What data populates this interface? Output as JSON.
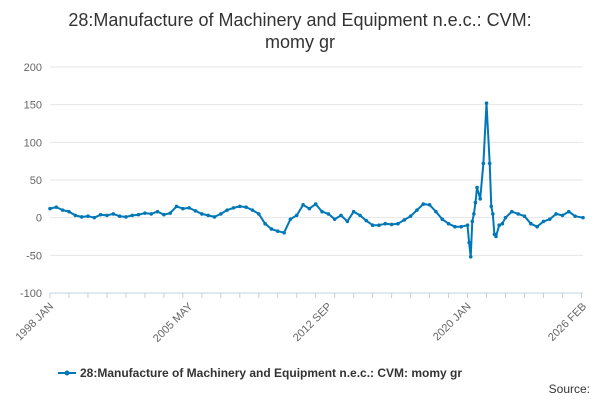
{
  "chart_data": {
    "type": "line",
    "title_lines": [
      "28:Manufacture of Machinery and Equipment n.e.c.: CVM:",
      "momy gr"
    ],
    "xlabel": "",
    "ylabel": "",
    "ylim": [
      -100,
      200
    ],
    "yticks": [
      -100,
      -50,
      0,
      50,
      100,
      150,
      200
    ],
    "xlim": [
      "1998 JAN",
      "2026 FEB"
    ],
    "xtick_labels": [
      "1998 JAN",
      "2005 MAY",
      "2012 SEP",
      "2020 JAN",
      "2026 FEB"
    ],
    "grid": "horizontal",
    "legend_position": "bottom",
    "series": [
      {
        "name": "28:Manufacture of Machinery and Equipment n.e.c.: CVM: momy gr",
        "color": "#0077b6",
        "x": [
          "1998 JAN",
          "1998 MAY",
          "1998 SEP",
          "1999 JAN",
          "1999 MAY",
          "1999 SEP",
          "2000 JAN",
          "2000 MAY",
          "2000 SEP",
          "2001 JAN",
          "2001 MAY",
          "2001 SEP",
          "2002 JAN",
          "2002 MAY",
          "2002 SEP",
          "2003 JAN",
          "2003 MAY",
          "2003 SEP",
          "2004 JAN",
          "2004 MAY",
          "2004 SEP",
          "2005 JAN",
          "2005 MAY",
          "2005 SEP",
          "2006 JAN",
          "2006 MAY",
          "2006 SEP",
          "2007 JAN",
          "2007 MAY",
          "2007 SEP",
          "2008 JAN",
          "2008 MAY",
          "2008 SEP",
          "2009 JAN",
          "2009 MAY",
          "2009 SEP",
          "2010 JAN",
          "2010 MAY",
          "2010 SEP",
          "2011 JAN",
          "2011 MAY",
          "2011 SEP",
          "2012 JAN",
          "2012 MAY",
          "2012 SEP",
          "2013 JAN",
          "2013 MAY",
          "2013 SEP",
          "2014 JAN",
          "2014 MAY",
          "2014 SEP",
          "2015 JAN",
          "2015 MAY",
          "2015 SEP",
          "2016 JAN",
          "2016 MAY",
          "2016 SEP",
          "2017 JAN",
          "2017 MAY",
          "2017 SEP",
          "2018 JAN",
          "2018 MAY",
          "2018 SEP",
          "2019 JAN",
          "2019 MAY",
          "2019 SEP",
          "2020 JAN",
          "2020 FEB",
          "2020 MAR",
          "2020 APR",
          "2020 MAY",
          "2020 JUN",
          "2020 JUL",
          "2020 SEP",
          "2020 NOV",
          "2021 JAN",
          "2021 MAR",
          "2021 APR",
          "2021 MAY",
          "2021 JUN",
          "2021 JUL",
          "2021 SEP",
          "2021 NOV",
          "2022 JAN",
          "2022 MAY",
          "2022 SEP",
          "2023 JAN",
          "2023 MAY",
          "2023 SEP",
          "2024 JAN",
          "2024 MAY",
          "2024 SEP",
          "2025 JAN",
          "2025 MAY",
          "2025 SEP",
          "2026 FEB"
        ],
        "y": [
          12,
          14,
          10,
          8,
          3,
          1,
          2,
          0,
          4,
          3,
          5,
          2,
          1,
          3,
          4,
          6,
          5,
          8,
          4,
          6,
          15,
          12,
          13,
          9,
          5,
          3,
          1,
          5,
          10,
          13,
          15,
          14,
          10,
          5,
          -8,
          -15,
          -18,
          -20,
          -2,
          3,
          17,
          12,
          18,
          8,
          5,
          -2,
          3,
          -5,
          8,
          3,
          -4,
          -10,
          -10,
          -8,
          -9,
          -8,
          -3,
          2,
          10,
          18,
          17,
          8,
          -2,
          -8,
          -12,
          -12,
          -10,
          -33,
          -52,
          -5,
          5,
          20,
          40,
          25,
          72,
          152,
          72,
          15,
          5,
          -22,
          -25,
          -10,
          -8,
          0,
          8,
          5,
          2,
          -8,
          -12,
          -5,
          -2,
          5,
          3,
          8,
          2,
          0
        ]
      }
    ]
  },
  "source_label": "Source:"
}
